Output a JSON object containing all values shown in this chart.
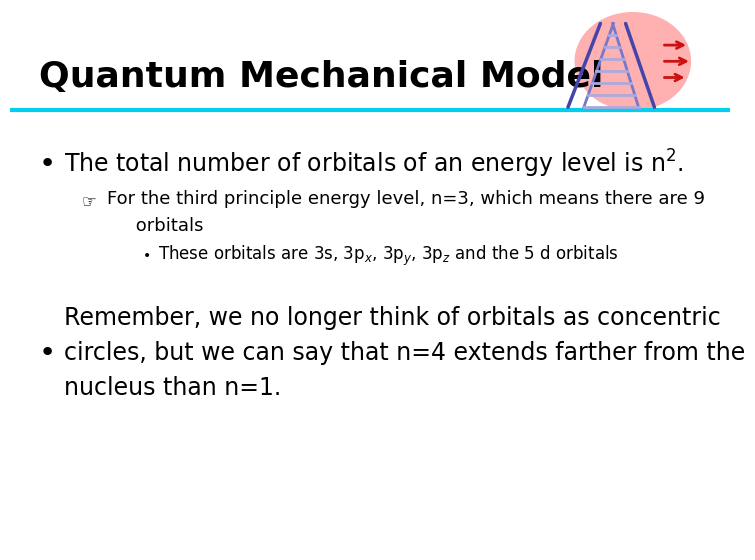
{
  "title": "Quantum Mechanical Model",
  "title_color": "#000000",
  "title_fontsize": 26,
  "line_color": "#00CFEF",
  "background_color": "#FFFFFF",
  "bullet1_text": "The total number of orbitals of an energy level is n$^{2}$.",
  "sub_bullet1_line1": "For the third principle energy level, n=3, which means there are 9",
  "sub_bullet1_line2": "     orbitals",
  "ssb_text": "These orbitals are 3s, 3p$_x$, 3p$_y$, 3p$_z$ and the 5 d orbitals",
  "bullet2_text": "Remember, we no longer think of orbitals as concentric\ncircles, but we can say that n=4 extends farther from the\nnucleus than n=1.",
  "font_size_bullet": 17,
  "font_size_sub": 13,
  "font_size_subsub": 12,
  "text_color": "#000000",
  "ladder_color": "#7777CC",
  "ladder_dark": "#4444AA",
  "rung_color": "#AAAADD",
  "pink_color": "#FFB0B0",
  "arrow_color": "#CC1111"
}
